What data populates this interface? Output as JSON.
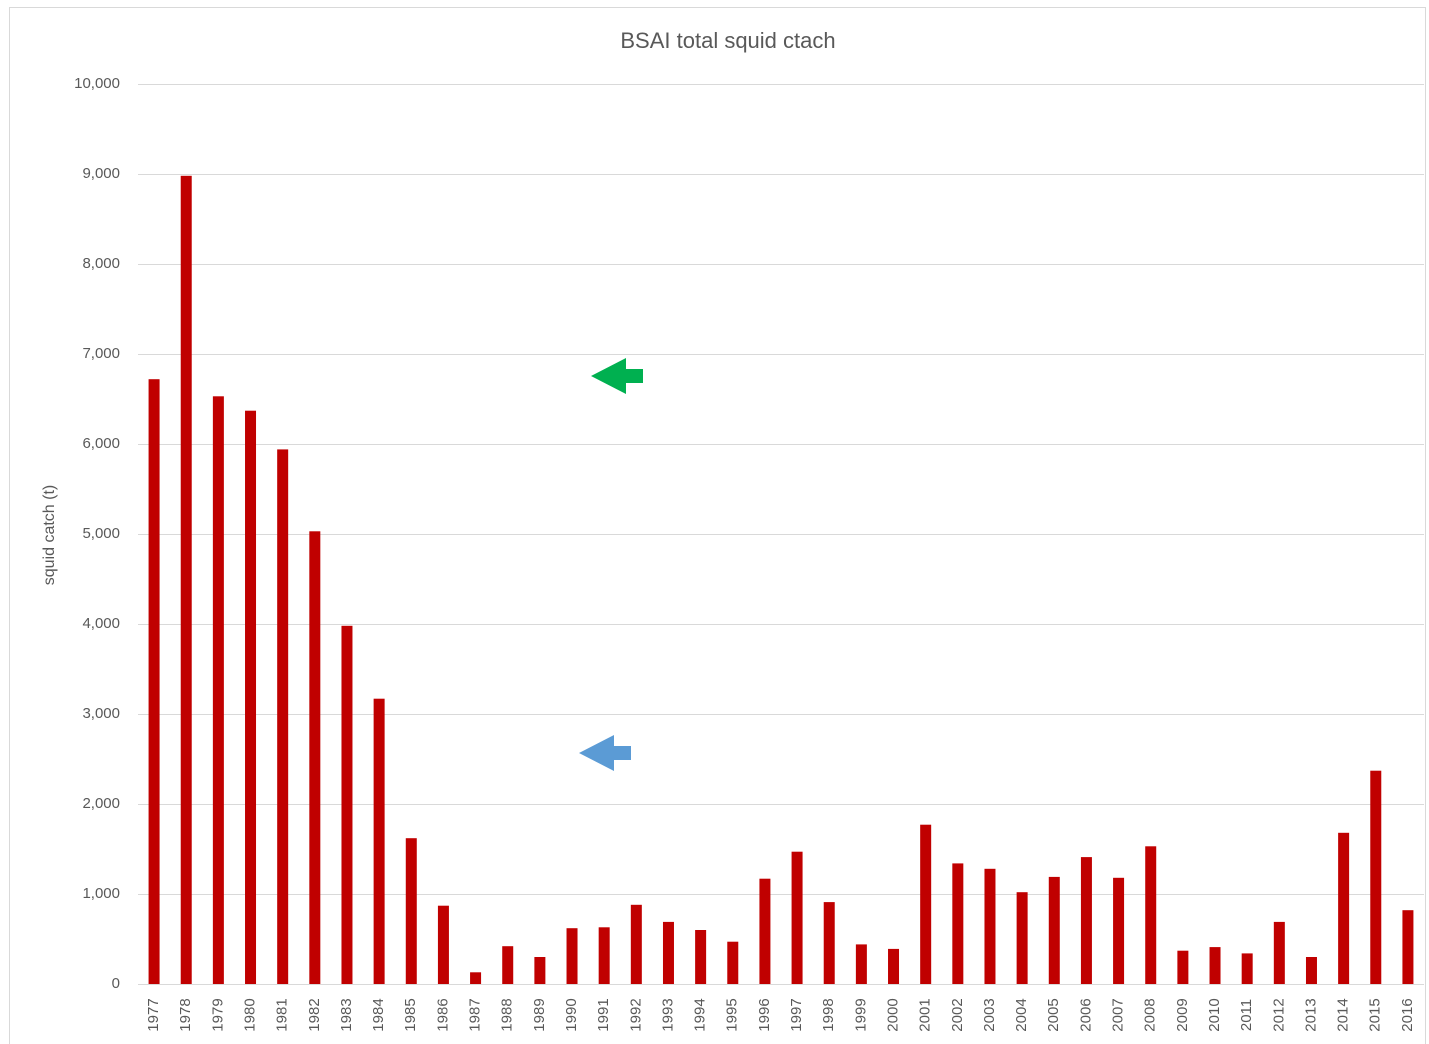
{
  "chart_data": {
    "type": "bar",
    "title": "BSAI total squid ctach",
    "y_label": "squid catch (t)",
    "categories": [
      "1977",
      "1978",
      "1979",
      "1980",
      "1981",
      "1982",
      "1983",
      "1984",
      "1985",
      "1986",
      "1987",
      "1988",
      "1989",
      "1990",
      "1991",
      "1992",
      "1993",
      "1994",
      "1995",
      "1996",
      "1997",
      "1998",
      "1999",
      "2000",
      "2001",
      "2002",
      "2003",
      "2004",
      "2005",
      "2006",
      "2007",
      "2008",
      "2009",
      "2010",
      "2011",
      "2012",
      "2013",
      "2014",
      "2015",
      "2016"
    ],
    "values": [
      6720,
      8980,
      6530,
      6370,
      5940,
      5030,
      3980,
      3170,
      1620,
      870,
      130,
      420,
      300,
      620,
      630,
      880,
      690,
      600,
      470,
      1170,
      1470,
      910,
      440,
      390,
      1770,
      1340,
      1280,
      1020,
      1190,
      1410,
      1180,
      1530,
      370,
      410,
      340,
      690,
      300,
      1680,
      2370,
      820
    ],
    "color": "#c00000",
    "ylim": [
      0,
      10000
    ],
    "yticks": [
      0,
      {
        "value": 1000,
        "label": "1,000"
      },
      {
        "value": 2000,
        "label": "2,000"
      },
      {
        "value": 3000,
        "label": "3,000"
      },
      {
        "value": 4000,
        "label": "4,000"
      },
      {
        "value": 5000,
        "label": "5,000"
      },
      {
        "value": 6000,
        "label": "6,000"
      },
      {
        "value": 7000,
        "label": "7,000"
      },
      {
        "value": 8000,
        "label": "8,000"
      },
      {
        "value": 9000,
        "label": "9,000"
      },
      {
        "value": 10000,
        "label": "10,000"
      }
    ],
    "grid": true
  }
}
